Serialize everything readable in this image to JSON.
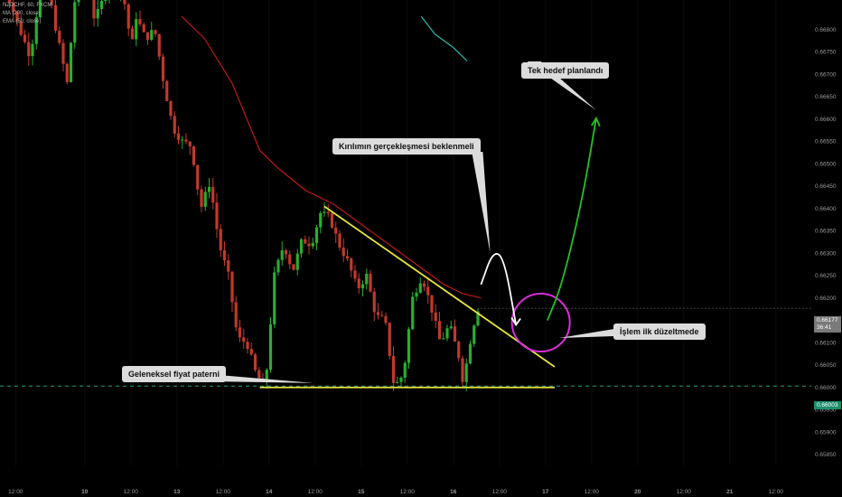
{
  "legend": {
    "symbol": "NZDCHF, 60, FXCM",
    "ma": "MA (200, close)",
    "ema": "EMA (50, close)"
  },
  "chart_data": {
    "type": "candlestick",
    "ylim": [
      0.6585,
      0.6683
    ],
    "y_ticks": [
      "0.66800",
      "0.66750",
      "0.66700",
      "0.66650",
      "0.66600",
      "0.66550",
      "0.66500",
      "0.66450",
      "0.66400",
      "0.66350",
      "0.66300",
      "0.66250",
      "0.66200",
      "0.66150",
      "0.66100",
      "0.66050",
      "0.66000",
      "0.65950",
      "0.65900",
      "0.65850"
    ],
    "x_ticks": [
      {
        "label": "12:00",
        "x": 0.15
      },
      {
        "label": "10",
        "x": 0.9
      },
      {
        "label": "12:00",
        "x": 1.4
      },
      {
        "label": "13",
        "x": 1.9
      },
      {
        "label": "12:00",
        "x": 2.4
      },
      {
        "label": "14",
        "x": 2.9
      },
      {
        "label": "12:00",
        "x": 3.4
      },
      {
        "label": "15",
        "x": 3.9
      },
      {
        "label": "12:00",
        "x": 4.4
      },
      {
        "label": "16",
        "x": 4.9
      },
      {
        "label": "12:00",
        "x": 5.4
      },
      {
        "label": "17",
        "x": 5.9
      },
      {
        "label": "12:00",
        "x": 6.4
      },
      {
        "label": "20",
        "x": 6.9
      },
      {
        "label": "12:00",
        "x": 7.4
      },
      {
        "label": "21",
        "x": 7.9
      },
      {
        "label": "12:00",
        "x": 8.4
      }
    ],
    "series_path": [
      [
        0.0,
        0.6695
      ],
      [
        0.2,
        0.6682
      ],
      [
        0.35,
        0.6674
      ],
      [
        0.5,
        0.6695
      ],
      [
        0.6,
        0.6683
      ],
      [
        0.75,
        0.6668
      ],
      [
        0.85,
        0.669
      ],
      [
        0.98,
        0.669
      ],
      [
        1.05,
        0.6682
      ],
      [
        1.2,
        0.669
      ],
      [
        1.35,
        0.6689
      ],
      [
        1.45,
        0.6676
      ],
      [
        1.5,
        0.6683
      ],
      [
        1.6,
        0.6678
      ],
      [
        1.7,
        0.668
      ],
      [
        1.8,
        0.6668
      ],
      [
        1.9,
        0.6658
      ],
      [
        2.0,
        0.6655
      ],
      [
        2.1,
        0.6654
      ],
      [
        2.2,
        0.664
      ],
      [
        2.3,
        0.6646
      ],
      [
        2.4,
        0.6632
      ],
      [
        2.5,
        0.6625
      ],
      [
        2.6,
        0.6611
      ],
      [
        2.7,
        0.661
      ],
      [
        2.8,
        0.6603
      ],
      [
        2.9,
        0.66
      ],
      [
        3.0,
        0.6625
      ],
      [
        3.1,
        0.6632
      ],
      [
        3.2,
        0.6626
      ],
      [
        3.3,
        0.6633
      ],
      [
        3.4,
        0.6632
      ],
      [
        3.5,
        0.6639
      ],
      [
        3.6,
        0.6638
      ],
      [
        3.7,
        0.6632
      ],
      [
        3.8,
        0.6628
      ],
      [
        3.9,
        0.6622
      ],
      [
        4.0,
        0.6625
      ],
      [
        4.1,
        0.6616
      ],
      [
        4.2,
        0.6615
      ],
      [
        4.3,
        0.66
      ],
      [
        4.4,
        0.6603
      ],
      [
        4.5,
        0.662
      ],
      [
        4.6,
        0.6625
      ],
      [
        4.7,
        0.6618
      ],
      [
        4.8,
        0.661
      ],
      [
        4.9,
        0.6614
      ],
      [
        5.0,
        0.6607
      ],
      [
        5.05,
        0.6601
      ],
      [
        5.12,
        0.661
      ],
      [
        5.2,
        0.66177
      ]
    ],
    "candle_seed": 7,
    "ma200": [
      [
        1.95,
        0.6683
      ],
      [
        2.2,
        0.6678
      ],
      [
        2.5,
        0.6668
      ],
      [
        2.8,
        0.6653
      ],
      [
        3.0,
        0.6649
      ],
      [
        3.3,
        0.6644
      ],
      [
        3.6,
        0.6641
      ],
      [
        3.8,
        0.6638
      ],
      [
        4.0,
        0.6635
      ],
      [
        4.2,
        0.6632
      ],
      [
        4.4,
        0.6629
      ],
      [
        4.6,
        0.6626
      ],
      [
        4.8,
        0.6623
      ],
      [
        5.0,
        0.6621
      ],
      [
        5.2,
        0.662
      ]
    ],
    "ema50": [
      [
        4.55,
        0.6683
      ],
      [
        4.7,
        0.6679
      ],
      [
        4.9,
        0.6676
      ],
      [
        5.0,
        0.6674
      ],
      [
        5.05,
        0.6673
      ]
    ],
    "support_line": [
      [
        2.8,
        0.66
      ],
      [
        6.0,
        0.66
      ]
    ],
    "trend_line": [
      [
        3.5,
        0.66405
      ],
      [
        6.0,
        0.66046
      ]
    ],
    "circle": {
      "x": 5.85,
      "y": 0.66145
    },
    "scenario_path": [
      [
        5.2,
        0.6623
      ],
      [
        5.33,
        0.66305
      ],
      [
        5.45,
        0.6629
      ],
      [
        5.58,
        0.6614
      ]
    ],
    "target_path": [
      [
        5.92,
        0.6615
      ],
      [
        6.08,
        0.6623
      ],
      [
        6.3,
        0.6642
      ],
      [
        6.45,
        0.66602
      ]
    ],
    "current_price": "0.66177",
    "countdown": "36:41",
    "support_price": "0.66003"
  },
  "annotations": {
    "target": "Tek hedef planlandı",
    "breakout": "Kırılımın gerçekleşmesi beklenmeli",
    "correction": "İşlem ilk düzeltmede",
    "pattern": "Geleneksel fiyat paterni"
  },
  "colors": {
    "background": "#000000",
    "bull": "#27ae2f",
    "bear": "#c0392b",
    "ma": "#c01818",
    "ema": "#2bb6a8",
    "trendline": "#e6e63c",
    "support_dash": "#2f9c86",
    "arrow_white": "#ffffff",
    "arrow_green": "#22c322",
    "circle": "#d82fd8",
    "current_tag": "#7a7a7a",
    "support_tag": "#1c8f6d"
  }
}
